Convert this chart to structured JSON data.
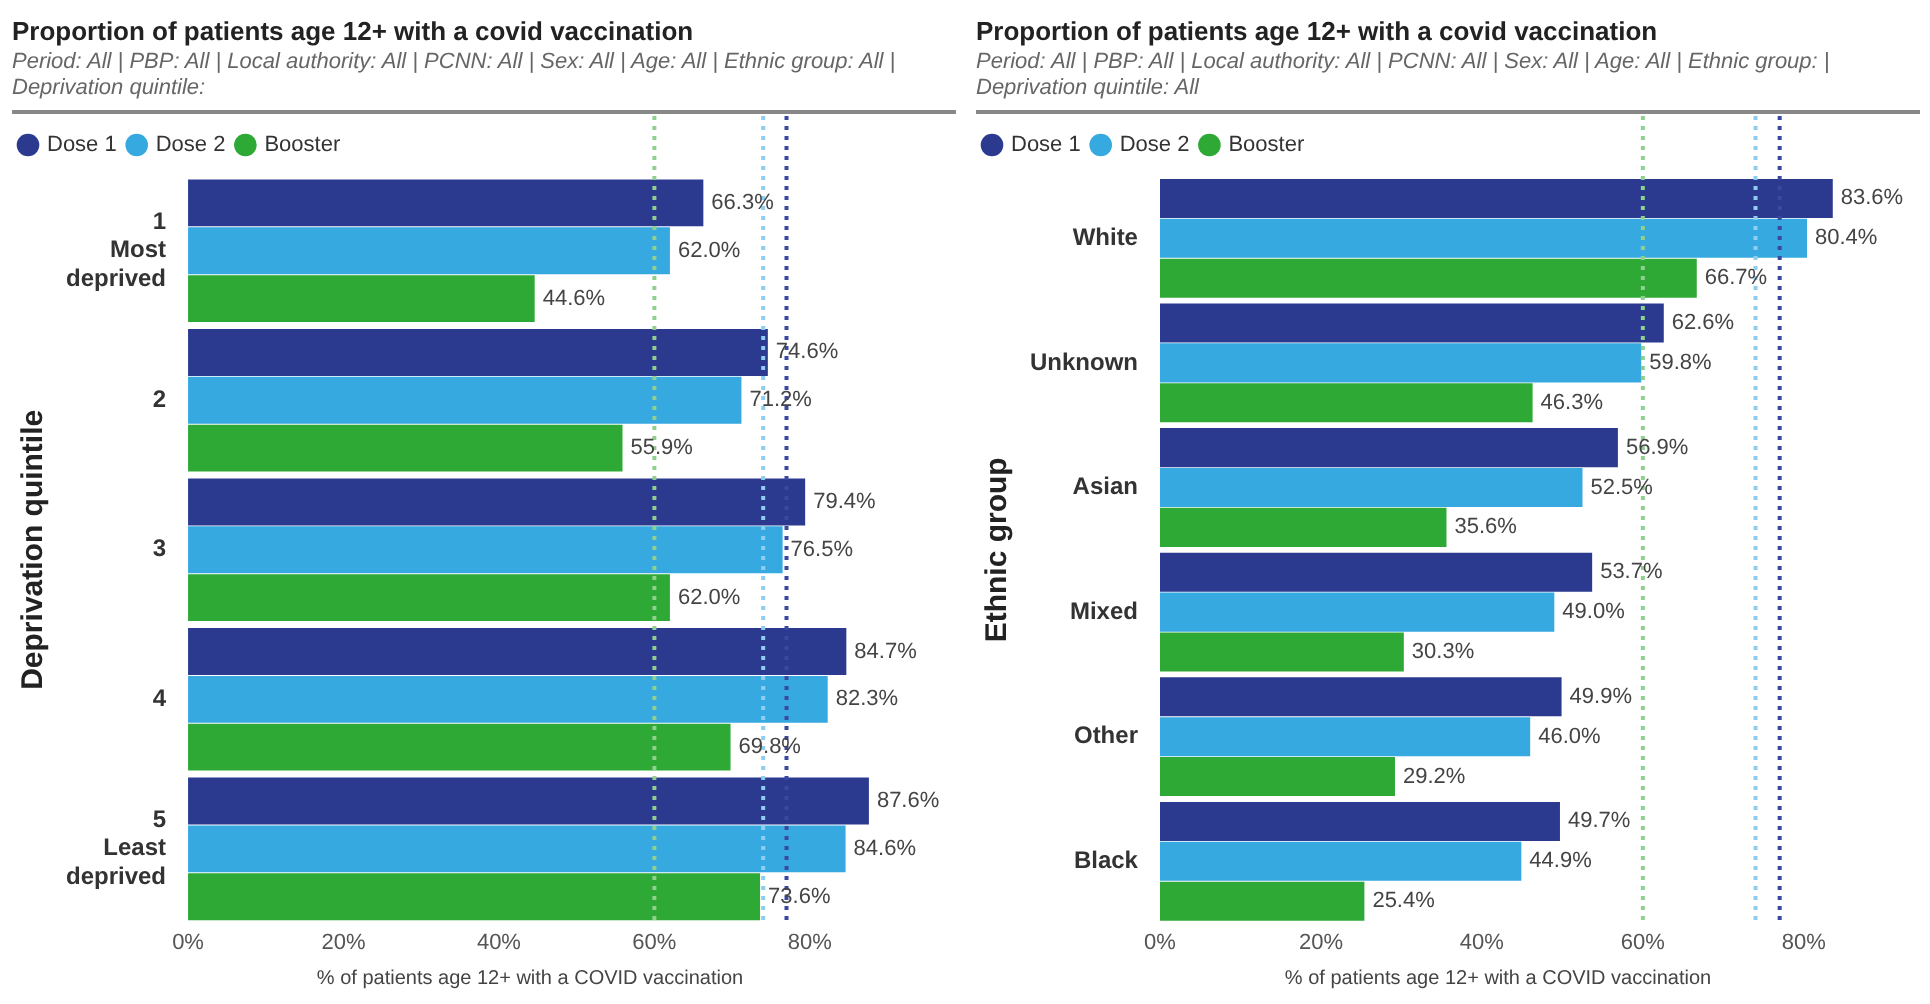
{
  "chart_data": [
    {
      "type": "bar",
      "orientation": "horizontal",
      "title": "Proportion of patients age 12+ with a covid vaccination",
      "subtitle": "Period: All | PBP: All | Local authority: All | PCNN: All | Sex: All | Age: All | Ethnic group: All | Deprivation quintile:",
      "xlabel": "% of patients age 12+ with a COVID vaccination",
      "ylabel": "Deprivation quintile",
      "legend": "top left",
      "grid": false,
      "categories": [
        "1\nMost\ndeprived",
        "2",
        "3",
        "4",
        "5\nLeast\ndeprived"
      ],
      "xlim": [
        0,
        88
      ],
      "xticks": [
        {
          "value": 0,
          "label": "0%"
        },
        {
          "value": 20,
          "label": "20%"
        },
        {
          "value": 40,
          "label": "40%"
        },
        {
          "value": 60,
          "label": "60%"
        },
        {
          "value": 80,
          "label": "80%"
        }
      ],
      "series": [
        {
          "name": "Dose 1",
          "color": "#2b3a8f",
          "values": [
            66.3,
            74.6,
            79.4,
            84.7,
            87.6
          ],
          "value_labels": [
            "66.3%",
            "74.6%",
            "79.4%",
            "84.7%",
            "87.6%"
          ]
        },
        {
          "name": "Dose 2",
          "color": "#36a9e1",
          "values": [
            62.0,
            71.2,
            76.5,
            82.3,
            84.6
          ],
          "value_labels": [
            "62.0%",
            "71.2%",
            "76.5%",
            "82.3%",
            "84.6%"
          ]
        },
        {
          "name": "Booster",
          "color": "#2fa935",
          "values": [
            44.6,
            55.9,
            62.0,
            69.8,
            73.6
          ],
          "value_labels": [
            "44.6%",
            "55.9%",
            "62.0%",
            "69.8%",
            "73.6%"
          ]
        }
      ],
      "ref_lines": [
        {
          "axis": "x",
          "value": 60,
          "color": "#8fd08f",
          "line_style": "dotted"
        },
        {
          "axis": "x",
          "value": 74,
          "color": "#8fcdee",
          "line_style": "dotted"
        },
        {
          "axis": "x",
          "value": 77,
          "color": "#3a48a0",
          "line_style": "dotted"
        }
      ]
    },
    {
      "type": "bar",
      "orientation": "horizontal",
      "title": "Proportion of patients age 12+ with a covid vaccination",
      "subtitle": "Period: All | PBP: All | Local authority: All | PCNN: All | Sex: All | Age: All | Ethnic group: | Deprivation quintile: All",
      "xlabel": "% of patients age 12+ with a COVID vaccination",
      "ylabel": "Ethnic group",
      "legend": "top left",
      "grid": false,
      "categories": [
        "White",
        "Unknown",
        "Asian",
        "Mixed",
        "Other",
        "Black"
      ],
      "xlim": [
        0,
        84
      ],
      "xticks": [
        {
          "value": 0,
          "label": "0%"
        },
        {
          "value": 20,
          "label": "20%"
        },
        {
          "value": 40,
          "label": "40%"
        },
        {
          "value": 60,
          "label": "60%"
        },
        {
          "value": 80,
          "label": "80%"
        }
      ],
      "series": [
        {
          "name": "Dose 1",
          "color": "#2b3a8f",
          "values": [
            83.6,
            62.6,
            56.9,
            53.7,
            49.9,
            49.7
          ],
          "value_labels": [
            "83.6%",
            "62.6%",
            "56.9%",
            "53.7%",
            "49.9%",
            "49.7%"
          ]
        },
        {
          "name": "Dose 2",
          "color": "#36a9e1",
          "values": [
            80.4,
            59.8,
            52.5,
            49.0,
            46.0,
            44.9
          ],
          "value_labels": [
            "80.4%",
            "59.8%",
            "52.5%",
            "49.0%",
            "46.0%",
            "44.9%"
          ]
        },
        {
          "name": "Booster",
          "color": "#2fa935",
          "values": [
            66.7,
            46.3,
            35.6,
            30.3,
            29.2,
            25.4
          ],
          "value_labels": [
            "66.7%",
            "46.3%",
            "35.6%",
            "30.3%",
            "29.2%",
            "25.4%"
          ]
        }
      ],
      "ref_lines": [
        {
          "axis": "x",
          "value": 60,
          "color": "#8fd08f",
          "line_style": "dotted"
        },
        {
          "axis": "x",
          "value": 74,
          "color": "#8fcdee",
          "line_style": "dotted"
        },
        {
          "axis": "x",
          "value": 77,
          "color": "#3a48a0",
          "line_style": "dotted"
        }
      ]
    }
  ]
}
